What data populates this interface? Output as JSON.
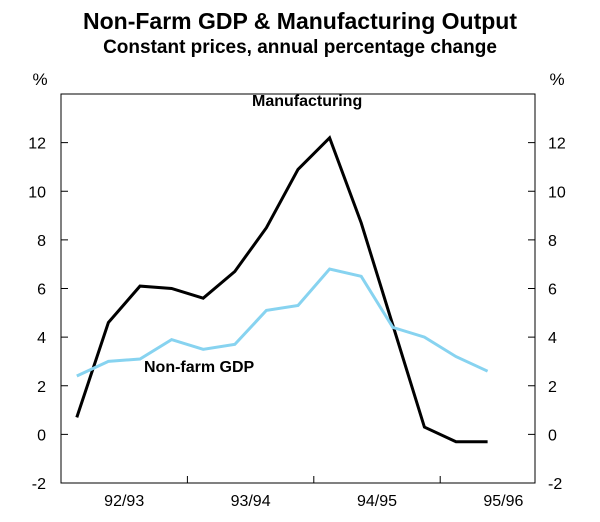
{
  "chart_data": {
    "type": "line",
    "title": "Non-Farm GDP & Manufacturing Output",
    "subtitle": "Constant prices, annual percentage change",
    "ylabel_left": "%",
    "ylabel_right": "%",
    "ylim": [
      -2,
      14
    ],
    "yticks": [
      -2,
      0,
      2,
      4,
      6,
      8,
      10,
      12
    ],
    "xlim": [
      0,
      15
    ],
    "x_ticks": [
      2,
      6,
      10,
      14
    ],
    "x_tick_labels": [
      "92/93",
      "93/94",
      "94/95",
      "95/96"
    ],
    "x_category_boundaries": [
      4,
      8,
      12
    ],
    "series": [
      {
        "name": "Manufacturing",
        "color": "#000000",
        "x": [
          0.5,
          1.5,
          2.5,
          3.5,
          4.5,
          5.5,
          6.5,
          7.5,
          8.5,
          9.5,
          10.5,
          11.5,
          12.5,
          13.5
        ],
        "values": [
          0.7,
          4.6,
          6.1,
          6.0,
          5.6,
          6.7,
          8.5,
          10.9,
          12.2,
          8.7,
          4.5,
          0.3,
          -0.3,
          -0.3
        ]
      },
      {
        "name": "Non-farm GDP",
        "color": "#87d3f0",
        "x": [
          0.5,
          1.5,
          2.5,
          3.5,
          4.5,
          5.5,
          6.5,
          7.5,
          8.5,
          9.5,
          10.5,
          11.5,
          12.5,
          13.5
        ],
        "values": [
          2.4,
          3.0,
          3.1,
          3.9,
          3.5,
          3.7,
          5.1,
          5.3,
          6.8,
          6.5,
          4.4,
          4.0,
          3.2,
          2.6
        ]
      }
    ]
  }
}
